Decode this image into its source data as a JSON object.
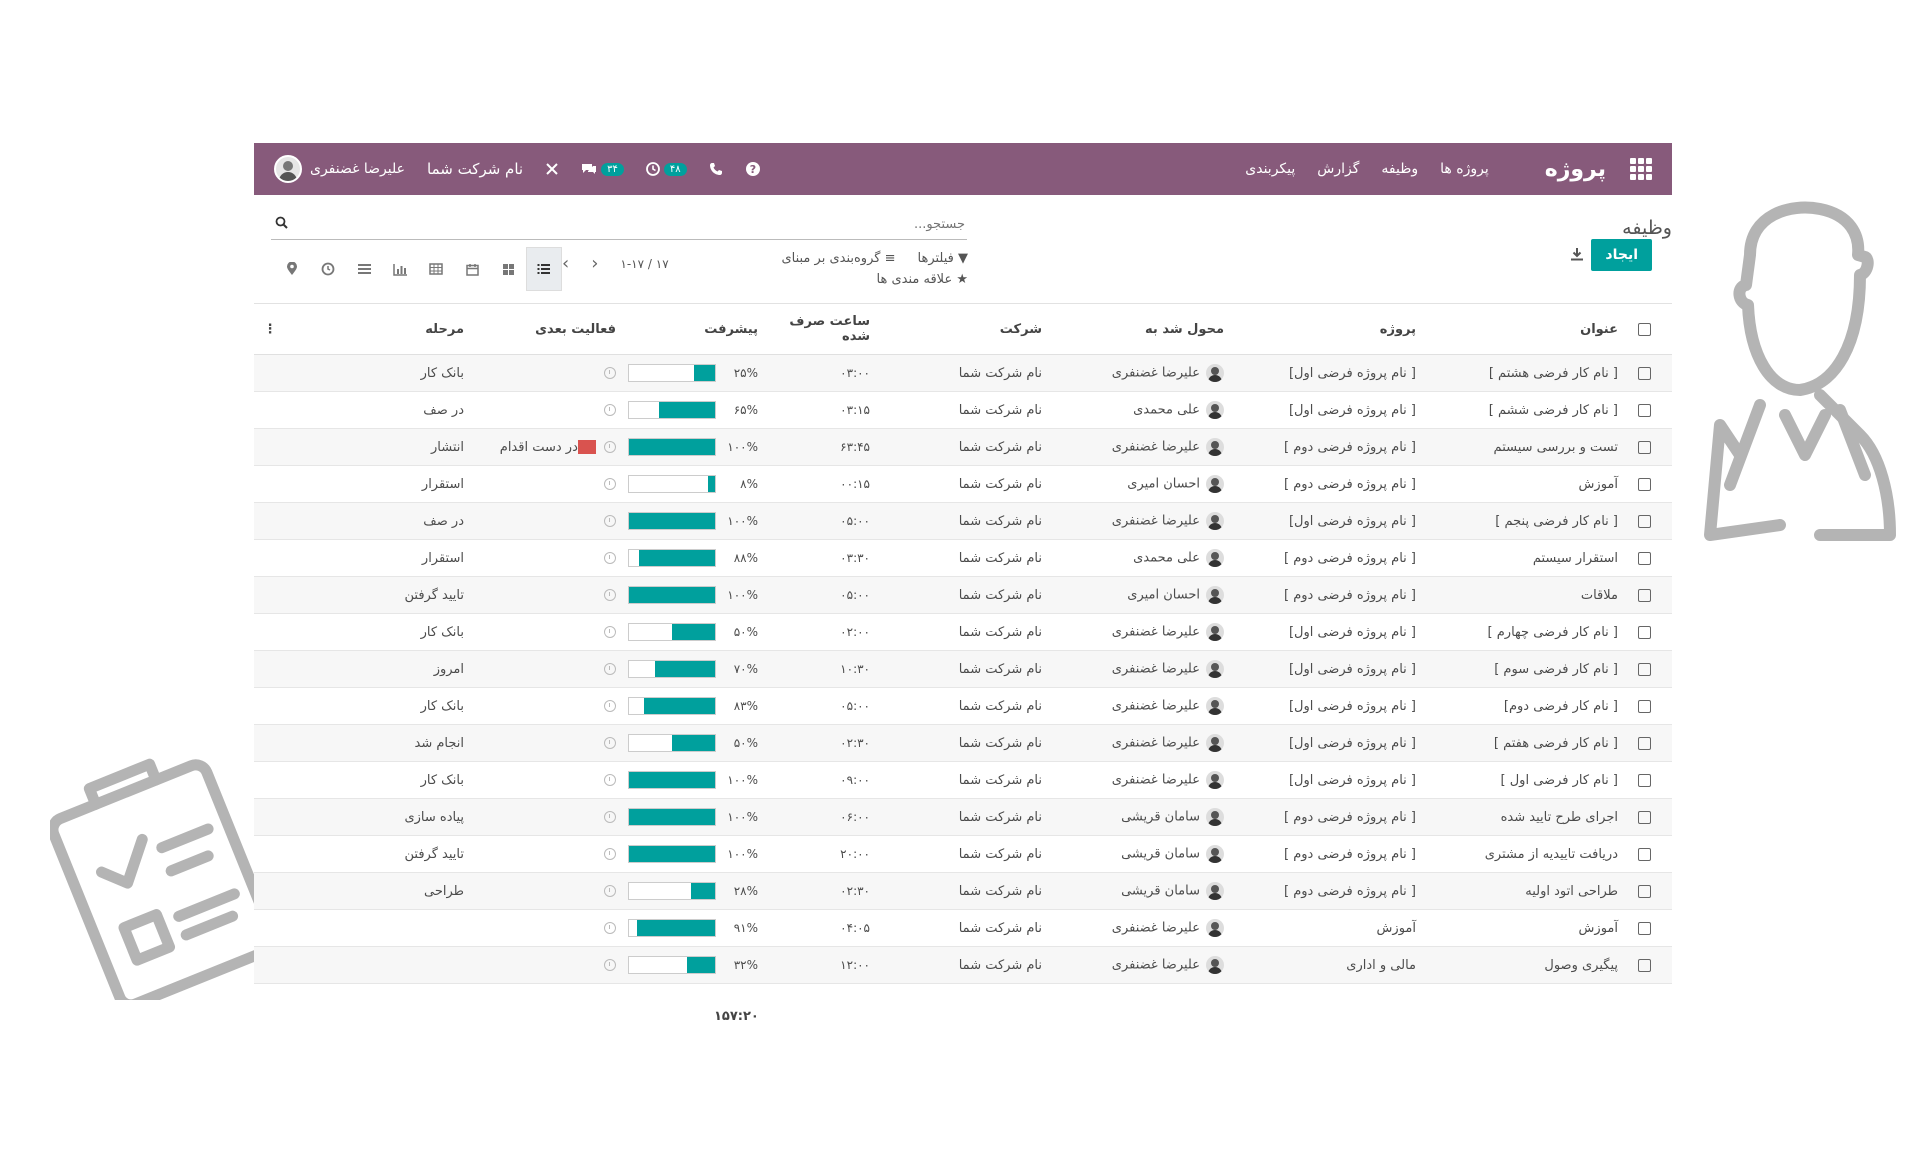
{
  "navbar": {
    "brand": "پروژه",
    "menu": [
      "پروژه ها",
      "وظیفه",
      "گزارش",
      "پیکربندی"
    ],
    "chat_badge": "۳۴",
    "activity_badge": "۴۸",
    "company": "نام شرکت شما",
    "user": "علیرضا غضنفری",
    "bg_color": "#875a7b"
  },
  "control_panel": {
    "breadcrumb": "وظیفه",
    "create_label": "ایجاد",
    "search_placeholder": "جستجو...",
    "filters_label": "فیلترها",
    "groupby_label": "گروه‌بندی بر مبنای",
    "favorites_label": "علاقه مندی ها",
    "pager": "۱-۱۷ / ۱۷"
  },
  "table": {
    "headers": {
      "title": "عنوان",
      "project": "پروژه",
      "assigned": "محول شد به",
      "company": "شرکت",
      "hours": "ساعت صرف شده",
      "progress": "پیشرفت",
      "next_activity": "فعالیت بعدی",
      "stage": "مرحله"
    },
    "rows": [
      {
        "title": "[ نام کار فرضی هشتم ]",
        "project": "[ نام پروژه فرضی اول]",
        "assigned": "علیرضا غضنفری",
        "company": "نام شرکت شما",
        "hours": "۰۳:۰۰",
        "progress": 25,
        "progress_label": "۲۵%",
        "activity": "",
        "stage": "بانک کار"
      },
      {
        "title": "[ نام کار فرضی ششم ]",
        "project": "[ نام پروژه فرضی اول]",
        "assigned": "علی محمدی",
        "company": "نام شرکت شما",
        "hours": "۰۳:۱۵",
        "progress": 65,
        "progress_label": "۶۵%",
        "activity": "",
        "stage": "در صف"
      },
      {
        "title": "تست و بررسی سیستم",
        "project": "[ نام پروژه فرضی دوم ]",
        "assigned": "علیرضا غضنفری",
        "company": "نام شرکت شما",
        "hours": "۶۳:۴۵",
        "progress": 100,
        "progress_label": "۱۰۰%",
        "activity": "در دست اقدام",
        "stage": "انتشار"
      },
      {
        "title": "آموزش",
        "project": "[ نام پروژه فرضی دوم ]",
        "assigned": "احسان امیری",
        "company": "نام شرکت شما",
        "hours": "۰۰:۱۵",
        "progress": 8,
        "progress_label": "۸%",
        "activity": "",
        "stage": "استقرار"
      },
      {
        "title": "[ نام کار فرضی پنجم ]",
        "project": "[ نام پروژه فرضی اول]",
        "assigned": "علیرضا غضنفری",
        "company": "نام شرکت شما",
        "hours": "۰۵:۰۰",
        "progress": 100,
        "progress_label": "۱۰۰%",
        "activity": "",
        "stage": "در صف"
      },
      {
        "title": "استقرار سیستم",
        "project": "[ نام پروژه فرضی دوم ]",
        "assigned": "علی محمدی",
        "company": "نام شرکت شما",
        "hours": "۰۳:۳۰",
        "progress": 88,
        "progress_label": "۸۸%",
        "activity": "",
        "stage": "استقرار"
      },
      {
        "title": "ملاقات",
        "project": "[ نام پروژه فرضی دوم ]",
        "assigned": "احسان امیری",
        "company": "نام شرکت شما",
        "hours": "۰۵:۰۰",
        "progress": 100,
        "progress_label": "۱۰۰%",
        "activity": "",
        "stage": "تایید گرفتن"
      },
      {
        "title": "[ نام کار فرضی چهارم ]",
        "project": "[ نام پروژه فرضی اول]",
        "assigned": "علیرضا غضنفری",
        "company": "نام شرکت شما",
        "hours": "۰۲:۰۰",
        "progress": 50,
        "progress_label": "۵۰%",
        "activity": "",
        "stage": "بانک کار"
      },
      {
        "title": "[ نام کار فرضی سوم ]",
        "project": "[ نام پروژه فرضی اول]",
        "assigned": "علیرضا غضنفری",
        "company": "نام شرکت شما",
        "hours": "۱۰:۳۰",
        "progress": 70,
        "progress_label": "۷۰%",
        "activity": "",
        "stage": "امروز"
      },
      {
        "title": "[ نام کار فرضی دوم]",
        "project": "[ نام پروژه فرضی اول]",
        "assigned": "علیرضا غضنفری",
        "company": "نام شرکت شما",
        "hours": "۰۵:۰۰",
        "progress": 83,
        "progress_label": "۸۳%",
        "activity": "",
        "stage": "بانک کار"
      },
      {
        "title": "[ نام کار فرضی هفتم ]",
        "project": "[ نام پروژه فرضی اول]",
        "assigned": "علیرضا غضنفری",
        "company": "نام شرکت شما",
        "hours": "۰۲:۳۰",
        "progress": 50,
        "progress_label": "۵۰%",
        "activity": "",
        "stage": "انجام شد"
      },
      {
        "title": "[ نام کار فرضی اول ]",
        "project": "[ نام پروژه فرضی اول]",
        "assigned": "علیرضا غضنفری",
        "company": "نام شرکت شما",
        "hours": "۰۹:۰۰",
        "progress": 100,
        "progress_label": "۱۰۰%",
        "activity": "",
        "stage": "بانک کار"
      },
      {
        "title": "اجرای طرح تایید شده",
        "project": "[ نام پروژه فرضی دوم ]",
        "assigned": "سامان قریشی",
        "company": "نام شرکت شما",
        "hours": "۰۶:۰۰",
        "progress": 100,
        "progress_label": "۱۰۰%",
        "activity": "",
        "stage": "پیاده سازی"
      },
      {
        "title": "دریافت تاییدیه از مشتری",
        "project": "[ نام پروژه فرضی دوم ]",
        "assigned": "سامان قریشی",
        "company": "نام شرکت شما",
        "hours": "۲۰:۰۰",
        "progress": 100,
        "progress_label": "۱۰۰%",
        "activity": "",
        "stage": "تایید گرفتن"
      },
      {
        "title": "طراحی اتود اولیه",
        "project": "[ نام پروژه فرضی دوم ]",
        "assigned": "سامان قریشی",
        "company": "نام شرکت شما",
        "hours": "۰۲:۳۰",
        "progress": 28,
        "progress_label": "۲۸%",
        "activity": "",
        "stage": "طراحی"
      },
      {
        "title": "آموزش",
        "project": "آموزش",
        "assigned": "علیرضا غضنفری",
        "company": "نام شرکت شما",
        "hours": "۰۴:۰۵",
        "progress": 91,
        "progress_label": "۹۱%",
        "activity": "",
        "stage": ""
      },
      {
        "title": "پیگیری وصول",
        "project": "مالی و اداری",
        "assigned": "علیرضا غضنفری",
        "company": "نام شرکت شما",
        "hours": "۱۲:۰۰",
        "progress": 32,
        "progress_label": "۳۲%",
        "activity": "",
        "stage": ""
      }
    ],
    "total_hours": "۱۵۷:۲۰",
    "progress_color": "#00a09d"
  }
}
